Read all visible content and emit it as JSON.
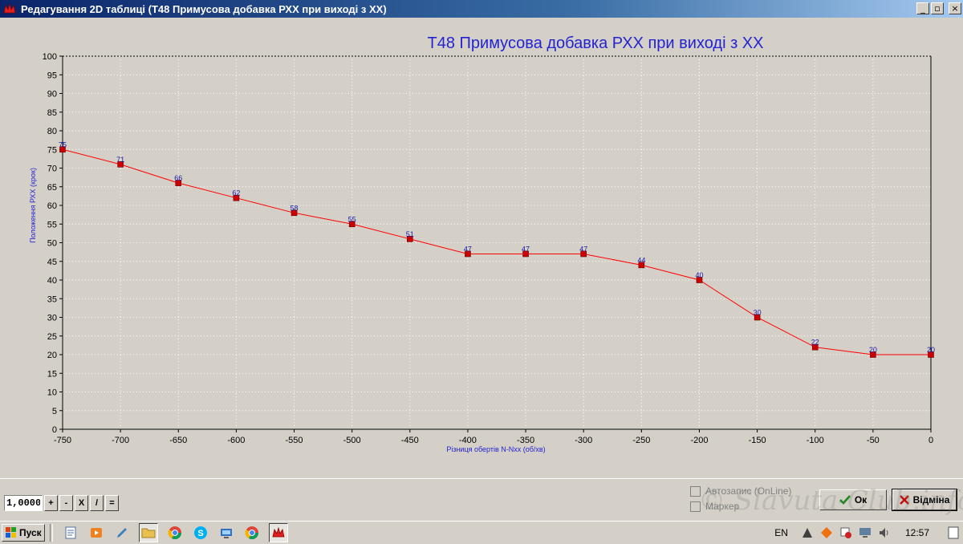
{
  "window": {
    "title": "Редагування 2D таблиці (Т48 Примусова добавка РХХ при виході з ХХ)",
    "min": "_",
    "restore": "▫",
    "close": "×"
  },
  "chart_data": {
    "type": "line",
    "title": "Т48 Примусова добавка РХХ при виході з ХХ",
    "xlabel": "Різниця обертів N-Nxx (об/хв)",
    "ylabel": "Положення РХХ (крок)",
    "x": [
      -750,
      -700,
      -650,
      -600,
      -550,
      -500,
      -450,
      -400,
      -350,
      -300,
      -250,
      -200,
      -150,
      -100,
      -50,
      0
    ],
    "series": [
      {
        "values": [
          75,
          71,
          66,
          62,
          58,
          55,
          51,
          47,
          47,
          47,
          44,
          40,
          30,
          22,
          20,
          20
        ]
      }
    ],
    "xlim": [
      -750,
      0
    ],
    "ylim": [
      0,
      100
    ],
    "xticks": [
      -750,
      -700,
      -650,
      -600,
      -550,
      -500,
      -450,
      -400,
      -350,
      -300,
      -250,
      -200,
      -150,
      -100,
      -50,
      0
    ],
    "yticks": [
      0,
      5,
      10,
      15,
      20,
      25,
      30,
      35,
      40,
      45,
      50,
      55,
      60,
      65,
      70,
      75,
      80,
      85,
      90,
      95,
      100
    ],
    "grid": true,
    "colors": {
      "line": "#ff0000",
      "marker": "#cc0000",
      "label": "#1a1aa8",
      "title": "#2323d2"
    }
  },
  "calc": {
    "value": "1,0000",
    "buttons": [
      "+",
      "-",
      "X",
      "/",
      "="
    ]
  },
  "options": {
    "autosave": "Автозапис (OnLine)",
    "marker": "Маркер"
  },
  "buttons": {
    "ok": "Ок",
    "cancel": "Відміна"
  },
  "watermark": "© Slavuta-Club.info",
  "taskbar": {
    "start": "Пуск",
    "lang": "EN",
    "clock": "12:57"
  }
}
